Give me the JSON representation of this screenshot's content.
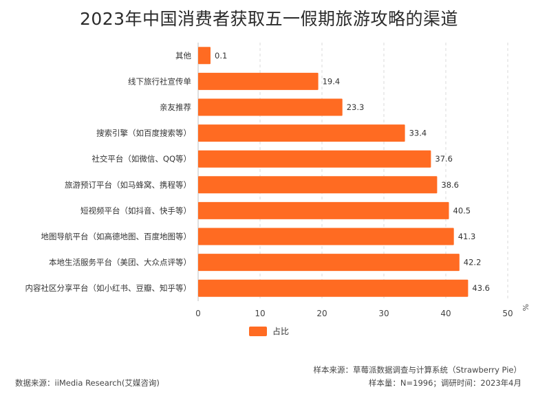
{
  "chart_data": {
    "type": "bar",
    "orientation": "horizontal",
    "title": "2023年中国消费者获取五一假期旅游攻略的渠道",
    "categories": [
      "其他",
      "线下旅行社宣传单",
      "亲友推荐",
      "搜索引擎（如百度搜索等）",
      "社交平台（如微信、QQ等）",
      "旅游预订平台（如马蜂窝、携程等）",
      "短视频平台（如抖音、快手等）",
      "地图导航平台（如高德地图、百度地图等）",
      "本地生活服务平台（美团、大众点评等）",
      "内容社区分享平台（如小红书、豆瓣、知乎等）"
    ],
    "series": [
      {
        "name": "占比",
        "values": [
          0.1,
          19.4,
          23.3,
          33.4,
          37.6,
          38.6,
          40.5,
          41.3,
          42.2,
          43.6
        ],
        "color": "#FF6B22"
      }
    ],
    "x_ticks": [
      "0",
      "10",
      "20",
      "30",
      "40",
      "50"
    ],
    "xlim": [
      0,
      50
    ],
    "unit": "%",
    "grid": "vertical-dashed",
    "legend_position": "bottom"
  },
  "footer": {
    "source": "数据来源：iiMedia Research(艾媒咨询)",
    "sample_source": "样本来源：草莓派数据调查与计算系统（Strawberry Pie）",
    "sample_info": "样本量：N=1996；调研时间：2023年4月"
  }
}
